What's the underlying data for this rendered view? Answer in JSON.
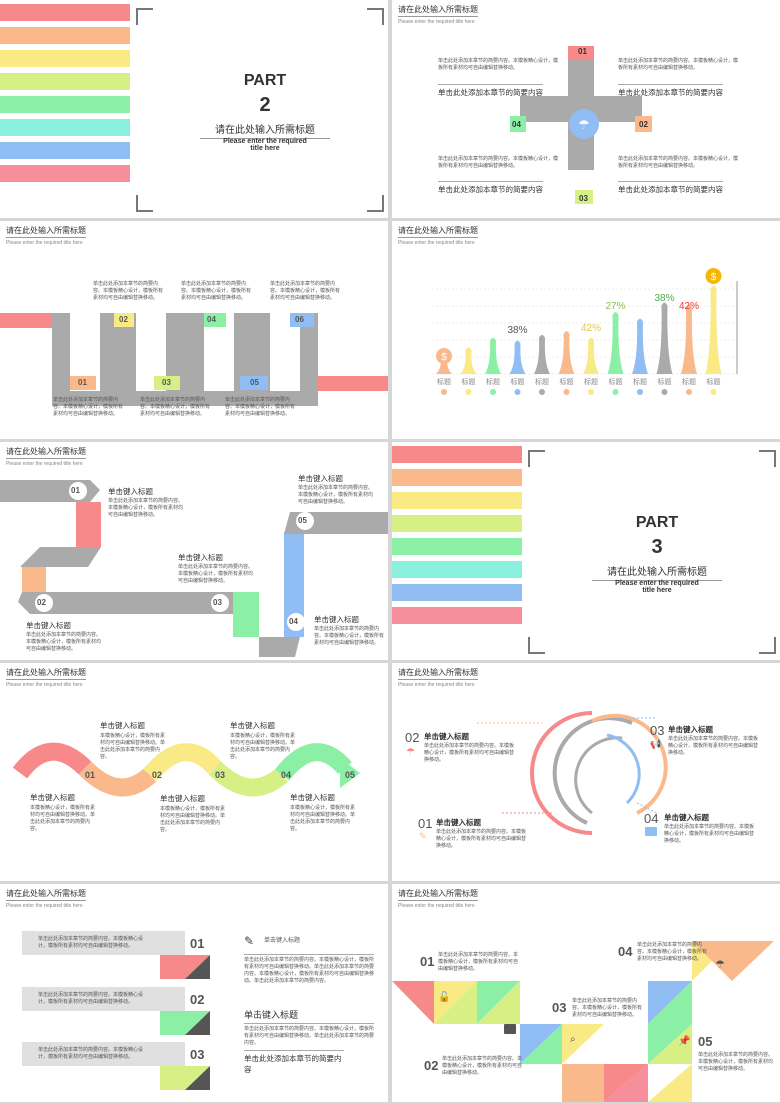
{
  "colors": {
    "red": "#f7898a",
    "orange": "#f9b98b",
    "yellow": "#faea86",
    "lime": "#d7f086",
    "green": "#8bf0a5",
    "teal": "#88f0dc",
    "blue": "#8fbdf4",
    "pink": "#f78e9b",
    "gray": "#aaaaaa"
  },
  "header": {
    "title": "请在此处输入所需标题",
    "subtitle": "Please enter the required title here"
  },
  "s1": {
    "part": "PART",
    "num": "2",
    "title": "请在此处输入所需标题",
    "sub": "Please enter the required title here"
  },
  "s2": {
    "nums": [
      "01",
      "02",
      "03",
      "04"
    ],
    "desc": "单击此处添加本章节的简要内容。本模板精心设计，模板所有素材均可自由编辑替换移动。",
    "caption": "单击此处添加本章节的简要内容"
  },
  "s3": {
    "nums": [
      "01",
      "02",
      "03",
      "04",
      "05",
      "06"
    ],
    "desc": "单击此处添加本章节的简要内容。本模板精心设计，模板所有素材均可自由编辑替换移动。"
  },
  "s4": {
    "percents": [
      "38%",
      "42%",
      "27%",
      "38%",
      "42%"
    ],
    "label": "标题",
    "coin": "$"
  },
  "s5": {
    "nums": [
      "01",
      "02",
      "03",
      "04",
      "05"
    ],
    "title": "单击键入标题",
    "desc": "单击此处添加本章节的简要内容。本模板精心设计，模板所有素材均可自由编辑替换移动。"
  },
  "s6": {
    "part": "PART",
    "num": "3",
    "title": "请在此处输入所需标题",
    "sub": "Please enter the required title here"
  },
  "s7": {
    "nums": [
      "01",
      "02",
      "03",
      "04",
      "05"
    ],
    "title": "单击键入标题",
    "desc": "本模板精心设计，模板所有素材均可自由编辑替换移动。单击此处添加本章节的简要内容。"
  },
  "s8": {
    "nums": [
      "01",
      "02",
      "03",
      "04"
    ],
    "title": "单击键入标题",
    "desc": "单击此处添加本章节的简要内容。本模板精心设计，模板所有素材均可自由编辑替换移动。"
  },
  "s9": {
    "nums": [
      "01",
      "02",
      "03"
    ],
    "boxdesc": "单击此处添加本章节的简要内容。本模板精心设计，模板所有素材均可自由编辑替换移动。",
    "title": "单击键入标题",
    "body": "单击此处添加本章节的简要内容。本模板精心设计，模板所有素材均可自由编辑替换移动。单击此处添加本章节的简要内容。本模板精心设计，模板所有素材均可自由编辑替换移动。单击此处添加本章节的简要内容。",
    "title2": "单击键入标题",
    "body2": "单击此处添加本章节的简要内容。本模板精心设计，模板所有素材均可自由编辑替换移动。单击此处添加本章节的简要内容。",
    "caption": "单击此处添加本章节的简要内容"
  },
  "s10": {
    "nums": [
      "01",
      "02",
      "03",
      "04",
      "05"
    ],
    "desc": "单击此处添加本章节的简要内容。本模板精心设计，模板所有素材均可自由编辑替换移动。"
  }
}
